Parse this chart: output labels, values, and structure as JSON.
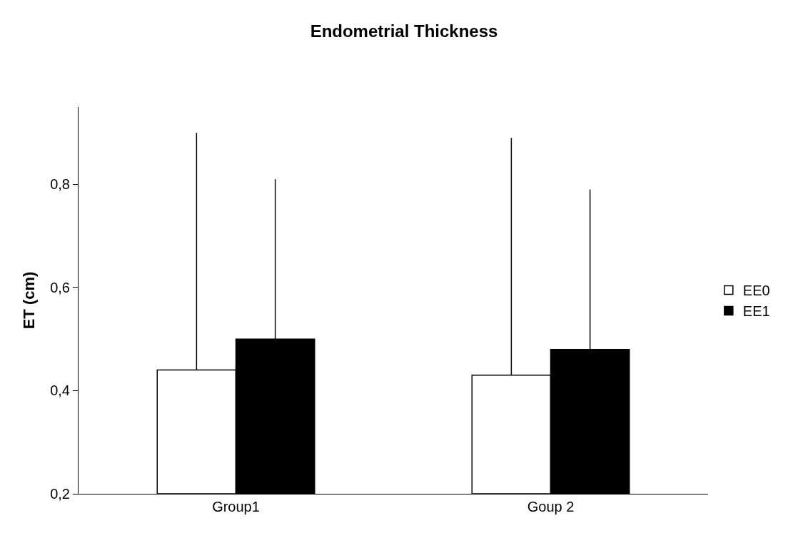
{
  "chart_data": {
    "type": "bar",
    "title": "Endometrial Thickness",
    "ylabel": "ET (cm)",
    "categories": [
      "Group1",
      "Goup 2"
    ],
    "series": [
      {
        "name": "EE0",
        "color": "#ffffff",
        "values": [
          0.44,
          0.43
        ],
        "errors": [
          [
            0.44,
            0.9
          ],
          [
            0.43,
            0.89
          ]
        ]
      },
      {
        "name": "EE1",
        "color": "#000000",
        "values": [
          0.5,
          0.48
        ],
        "errors": [
          [
            0.5,
            0.81
          ],
          [
            0.48,
            0.79
          ]
        ]
      }
    ],
    "ylim": [
      0.2,
      0.95
    ],
    "yticks": [
      {
        "value": 0.2,
        "label": "0,2"
      },
      {
        "value": 0.4,
        "label": "0,4"
      },
      {
        "value": 0.6,
        "label": "0,6"
      },
      {
        "value": 0.8,
        "label": "0,8"
      }
    ],
    "grid": false,
    "legend": "right"
  }
}
